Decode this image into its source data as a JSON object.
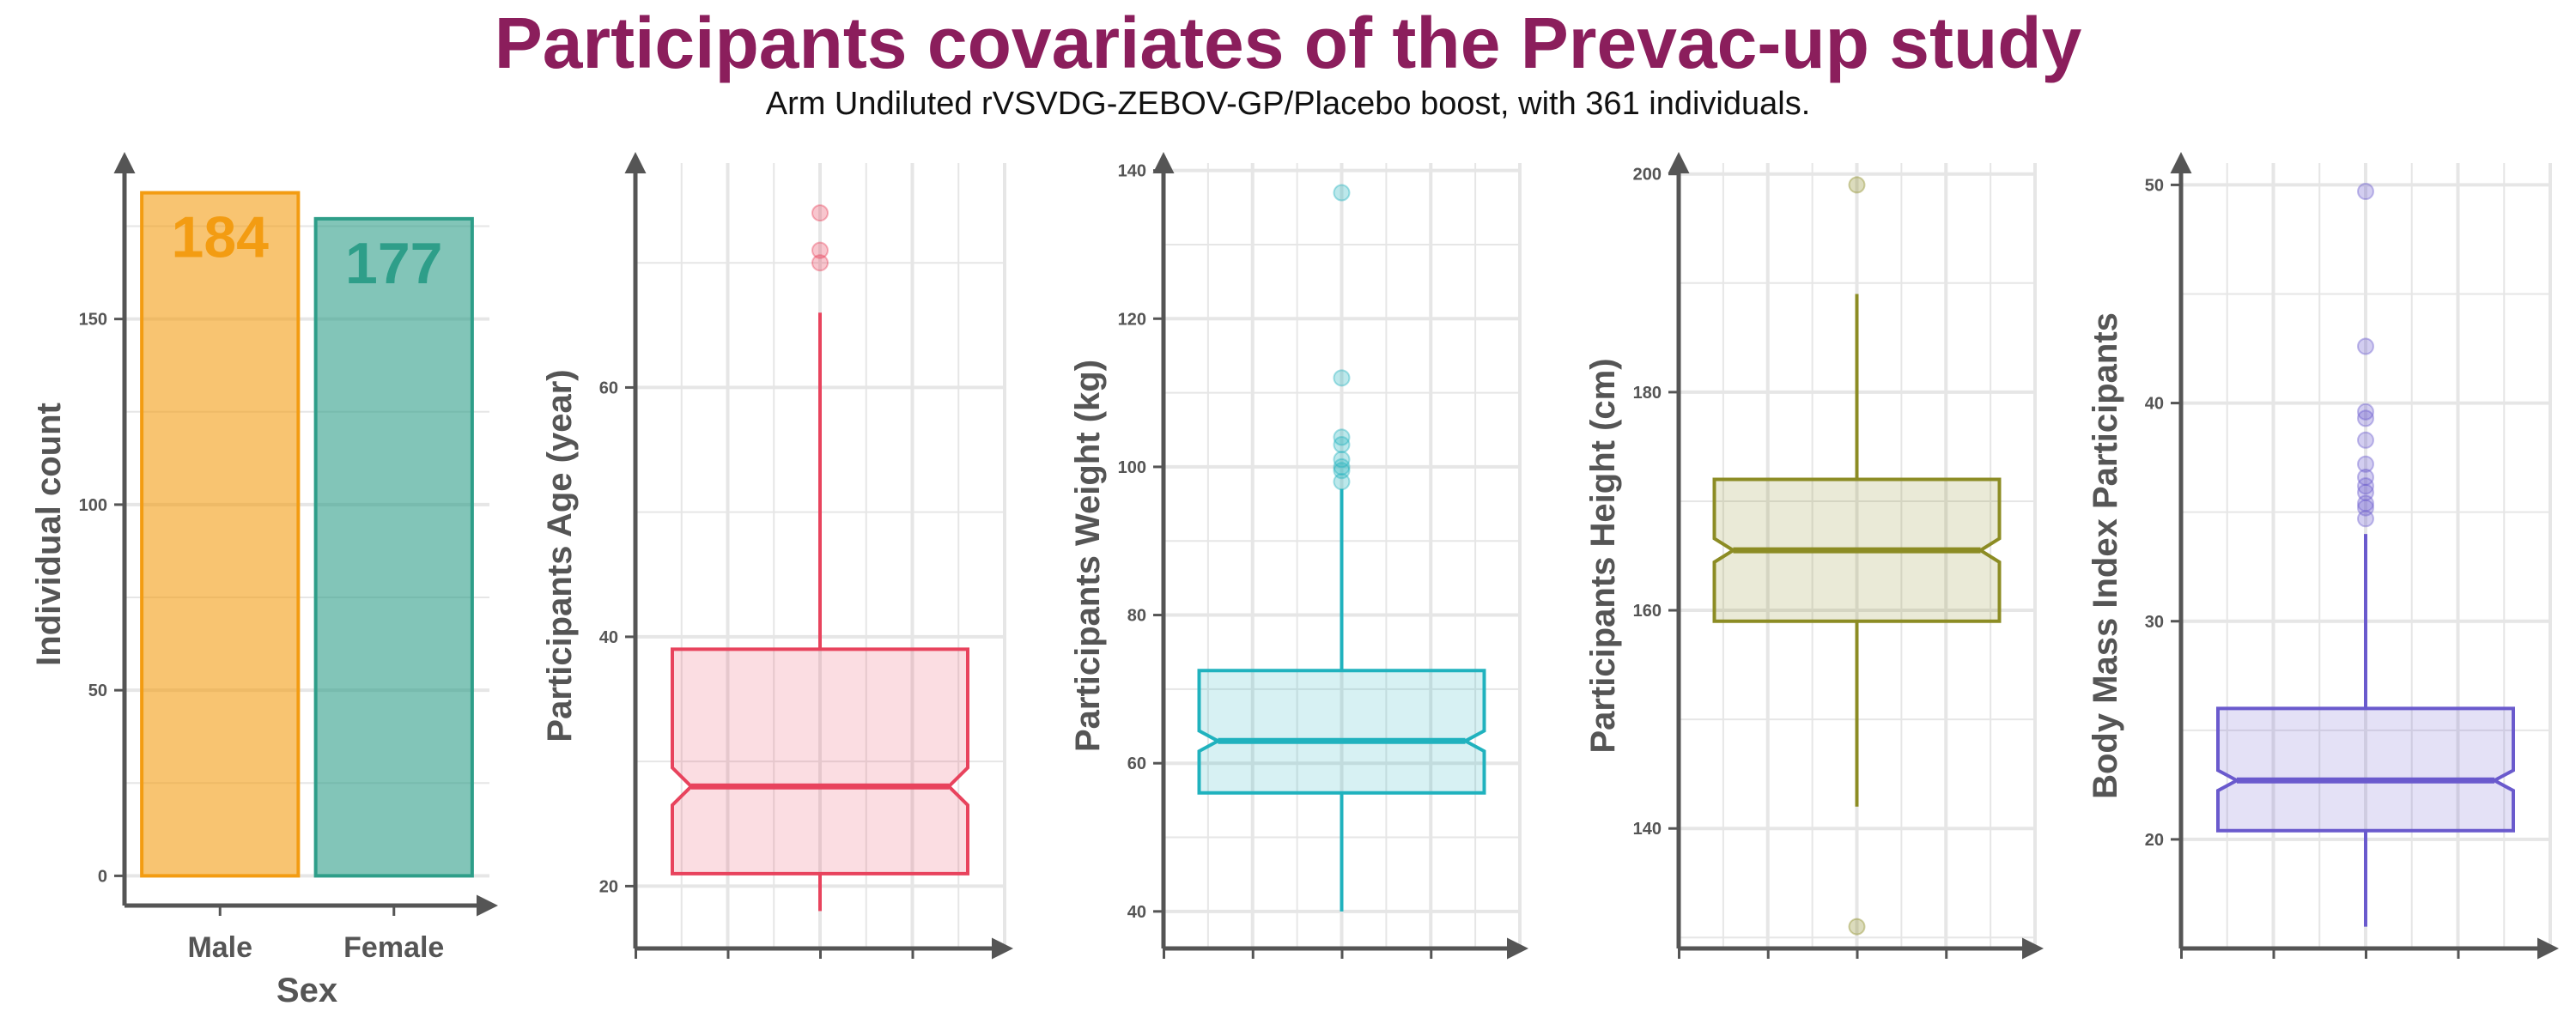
{
  "title": "Participants covariates of the Prevac-up study",
  "subtitle": "Arm Undiluted rVSVDG-ZEBOV-GP/Placebo boost, with 361 individuals.",
  "colors": {
    "title": "#8B1E5C",
    "axis": "#555555",
    "grid": "#E6E6E6"
  },
  "chart_data": [
    {
      "type": "bar",
      "categories": [
        "Male",
        "Female"
      ],
      "values": [
        184,
        177
      ],
      "data_labels": [
        "184",
        "177"
      ],
      "xlabel": "Sex",
      "ylabel": "Individual count",
      "ylim": [
        -8,
        192
      ],
      "yticks": [
        0,
        50,
        100,
        150
      ],
      "ytick_labels": [
        "0",
        "50",
        "100",
        "150"
      ],
      "colors": [
        "#F39C12",
        "#2E9E89"
      ],
      "grid": true
    },
    {
      "type": "box",
      "ylabel": "Participants Age (year)",
      "ylim": [
        15,
        78
      ],
      "yticks": [
        20,
        40,
        60
      ],
      "ytick_labels": [
        "20",
        "40",
        "60"
      ],
      "stats": {
        "whisker_low": 18,
        "q1": 21,
        "median": 28,
        "q3": 39,
        "whisker_high": 66
      },
      "outliers": [
        70,
        71,
        74
      ],
      "color": "#E8435D",
      "grid": true
    },
    {
      "type": "box",
      "ylabel": "Participants Weight (kg)",
      "ylim": [
        35,
        141
      ],
      "yticks": [
        40,
        60,
        80,
        100,
        120,
        140
      ],
      "ytick_labels": [
        "40",
        "60",
        "80",
        "100",
        "120",
        "140"
      ],
      "stats": {
        "whisker_low": 40,
        "q1": 56,
        "median": 63,
        "q3": 72.5,
        "whisker_high": 97
      },
      "outliers": [
        98,
        99.5,
        100,
        101,
        103,
        104,
        112,
        137
      ],
      "color": "#20B2BE",
      "grid": true
    },
    {
      "type": "box",
      "ylabel": "Participants Height (cm)",
      "ylim": [
        129,
        201
      ],
      "yticks": [
        140,
        160,
        180,
        200
      ],
      "ytick_labels": [
        "140",
        "160",
        "180",
        "200"
      ],
      "stats": {
        "whisker_low": 142,
        "q1": 159,
        "median": 165.5,
        "q3": 172,
        "whisker_high": 189
      },
      "outliers": [
        131,
        199
      ],
      "color": "#8C8C24",
      "grid": true
    },
    {
      "type": "box",
      "ylabel": "Body Mass Index Participants",
      "ylim": [
        15,
        51
      ],
      "yticks": [
        20,
        30,
        40,
        50
      ],
      "ytick_labels": [
        "20",
        "30",
        "40",
        "50"
      ],
      "stats": {
        "whisker_low": 16,
        "q1": 20.4,
        "median": 22.7,
        "q3": 26,
        "whisker_high": 34
      },
      "outliers": [
        34.7,
        35.2,
        35.4,
        35.9,
        36.2,
        36.6,
        37.2,
        38.3,
        39.3,
        39.6,
        42.6,
        49.7
      ],
      "color": "#6A5ACD",
      "grid": true
    }
  ]
}
